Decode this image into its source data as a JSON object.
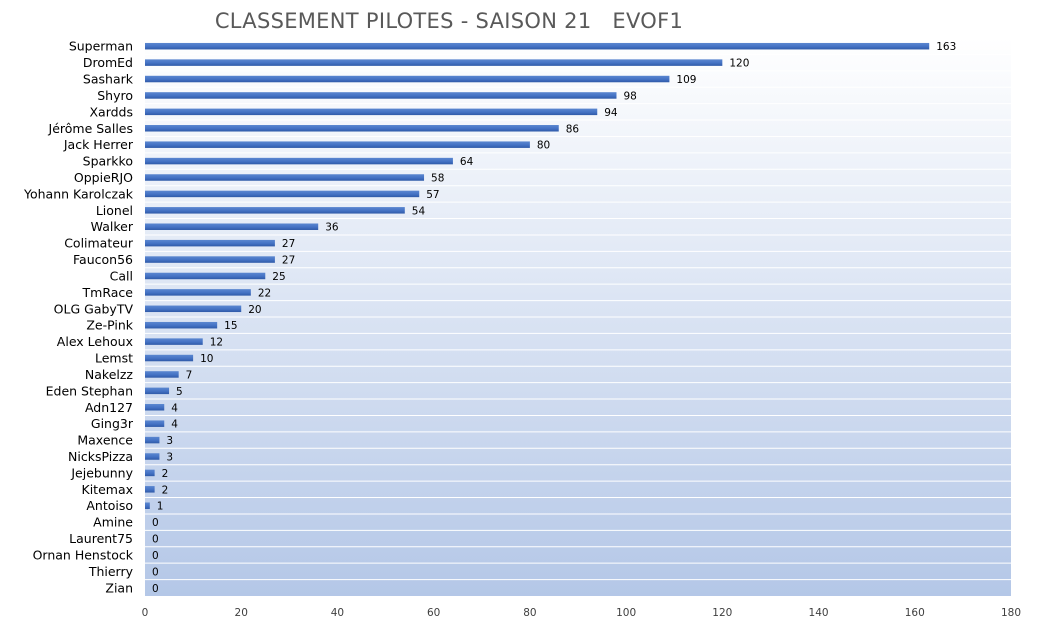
{
  "chart_data": {
    "type": "bar",
    "orientation": "horizontal",
    "title": "CLASSEMENT PILOTES - SAISON 21   EVOF1",
    "xlabel": "",
    "ylabel": "",
    "xlim": [
      0,
      180
    ],
    "xticks": [
      0,
      20,
      40,
      60,
      80,
      100,
      120,
      140,
      160,
      180
    ],
    "grid": false,
    "legend": "none",
    "bar_color": "#4472C4",
    "categories": [
      "Superman",
      "DromEd",
      "Sashark",
      "Shyro",
      "Xardds",
      "Jérôme Salles",
      "Jack Herrer",
      "Sparkko",
      "OppieRJO",
      "Yohann Karolczak",
      "Lionel",
      "Walker",
      "Colimateur",
      "Faucon56",
      "Call",
      "TmRace",
      "OLG GabyTV",
      "Ze-Pink",
      "Alex Lehoux",
      "Lemst",
      "Nakelzz",
      "Eden Stephan",
      "Adn127",
      "Ging3r",
      "Maxence",
      "NicksPizza",
      "Jejebunny",
      "Kitemax",
      "Antoiso",
      "Amine",
      "Laurent75",
      "Ornan Henstock",
      "Thierry",
      "Zian"
    ],
    "values": [
      163,
      120,
      109,
      98,
      94,
      86,
      80,
      64,
      58,
      57,
      54,
      36,
      27,
      27,
      25,
      22,
      20,
      15,
      12,
      10,
      7,
      5,
      4,
      4,
      3,
      3,
      2,
      2,
      1,
      0,
      0,
      0,
      0,
      0
    ]
  }
}
